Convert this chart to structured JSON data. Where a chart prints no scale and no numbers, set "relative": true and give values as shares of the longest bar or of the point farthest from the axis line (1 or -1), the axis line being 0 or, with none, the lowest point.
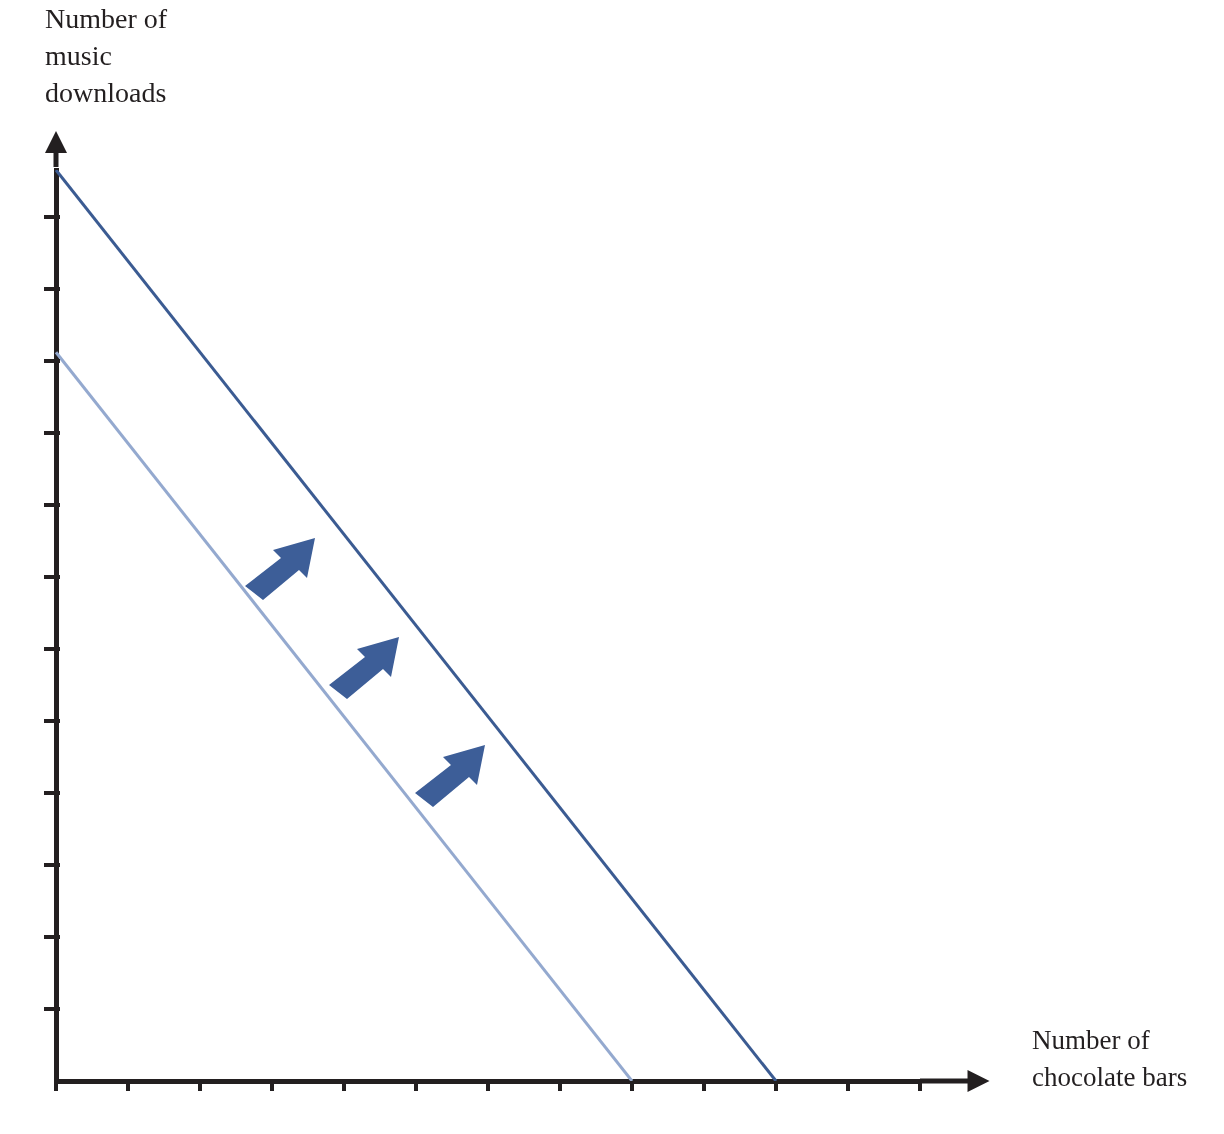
{
  "chart_data": {
    "type": "line",
    "relative": true,
    "xlabel": "Number of chocolate bars",
    "ylabel": "Number of music downloads",
    "categories": [
      null,
      null,
      null,
      null,
      null,
      null,
      null,
      null,
      null,
      null,
      null,
      null,
      null
    ],
    "marker": "none",
    "legend": false,
    "series": [
      {
        "color": "#3b5b92",
        "values": [
          1,
          null,
          null,
          null,
          null,
          null,
          null,
          null,
          null,
          null,
          0,
          null,
          null
        ]
      },
      {
        "color": "#94a9cf",
        "values": [
          0.8,
          null,
          null,
          null,
          null,
          null,
          null,
          null,
          0,
          null,
          null,
          null,
          null
        ]
      }
    ]
  }
}
